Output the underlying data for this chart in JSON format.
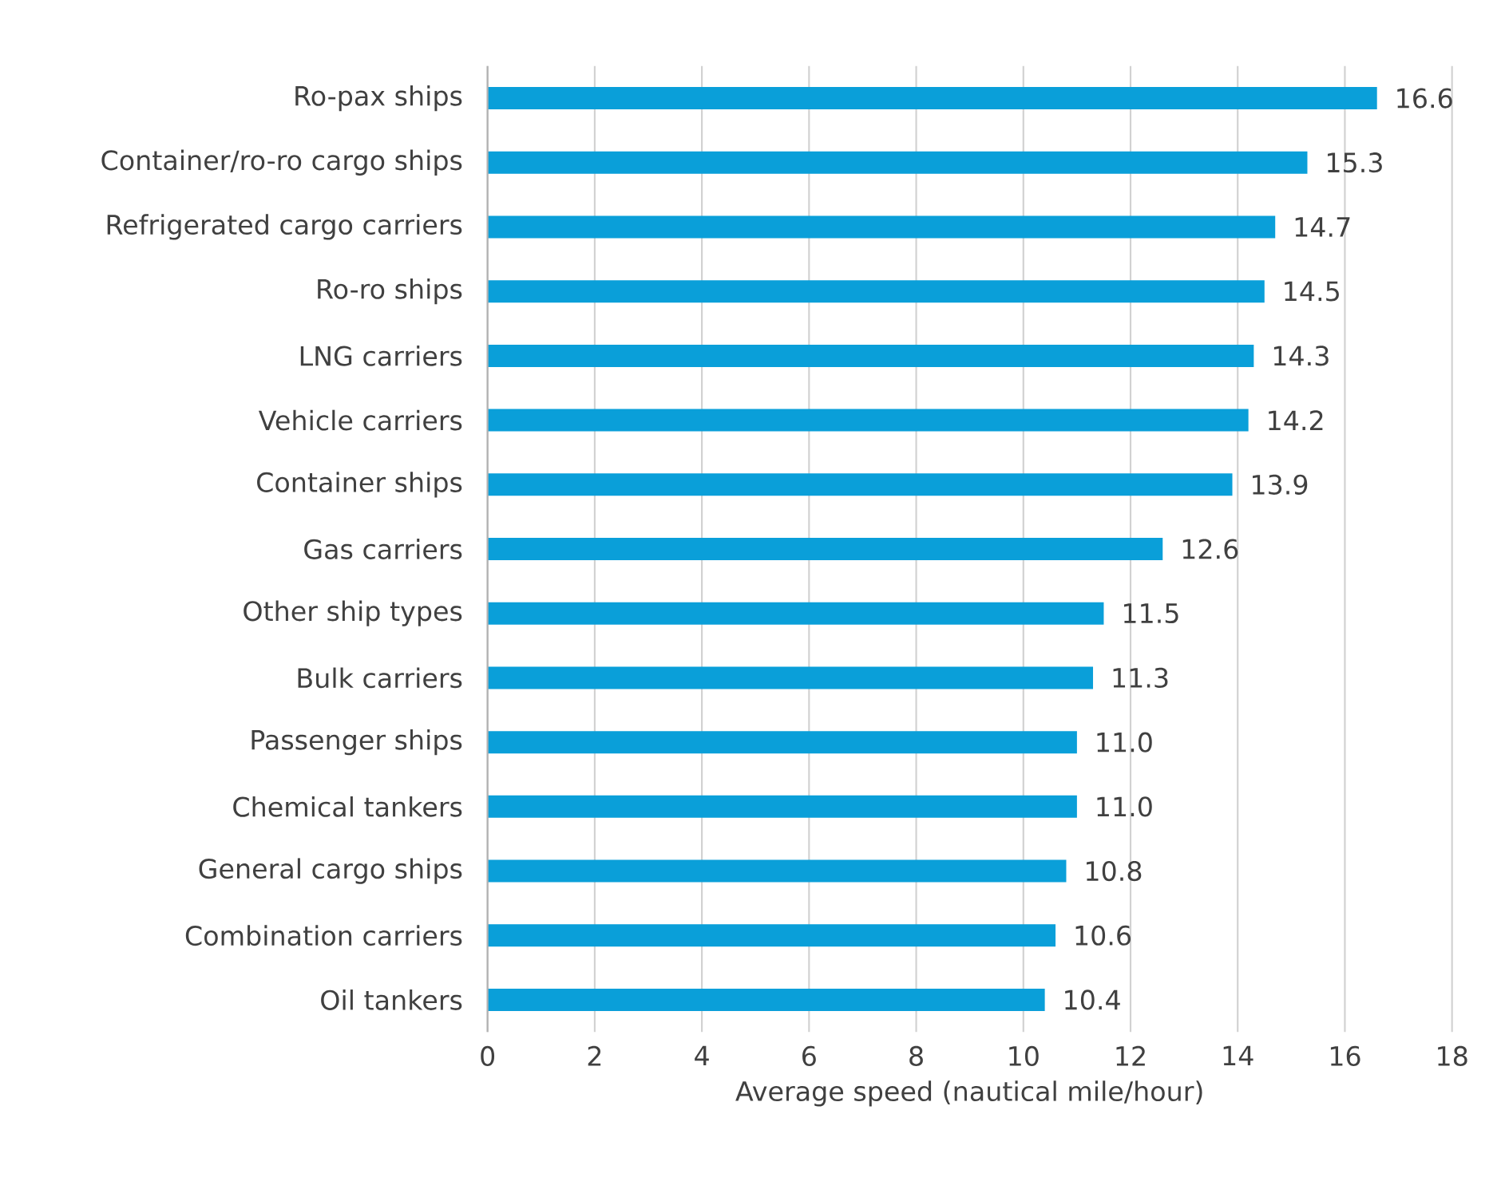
{
  "chart_data": {
    "type": "bar",
    "orientation": "horizontal",
    "categories": [
      "Ro-pax ships",
      "Container/ro-ro cargo ships",
      "Refrigerated cargo carriers",
      "Ro-ro ships",
      "LNG carriers",
      "Vehicle carriers",
      "Container ships",
      "Gas carriers",
      "Other ship types",
      "Bulk carriers",
      "Passenger ships",
      "Chemical tankers",
      "General cargo ships",
      "Combination carriers",
      "Oil tankers"
    ],
    "values": [
      16.6,
      15.3,
      14.7,
      14.5,
      14.3,
      14.2,
      13.9,
      12.6,
      11.5,
      11.3,
      11.0,
      11.0,
      10.8,
      10.6,
      10.4
    ],
    "value_labels": [
      "16.6",
      "15.3",
      "14.7",
      "14.5",
      "14.3",
      "14.2",
      "13.9",
      "12.6",
      "11.5",
      "11.3",
      "11.0",
      "11.0",
      "10.8",
      "10.6",
      "10.4"
    ],
    "color": "#0a9fd9",
    "xlabel": "Average speed (nautical mile/hour)",
    "xlim": [
      0,
      18
    ],
    "xticks": [
      0,
      2,
      4,
      6,
      8,
      10,
      12,
      14,
      16,
      18
    ],
    "grid": "x"
  }
}
